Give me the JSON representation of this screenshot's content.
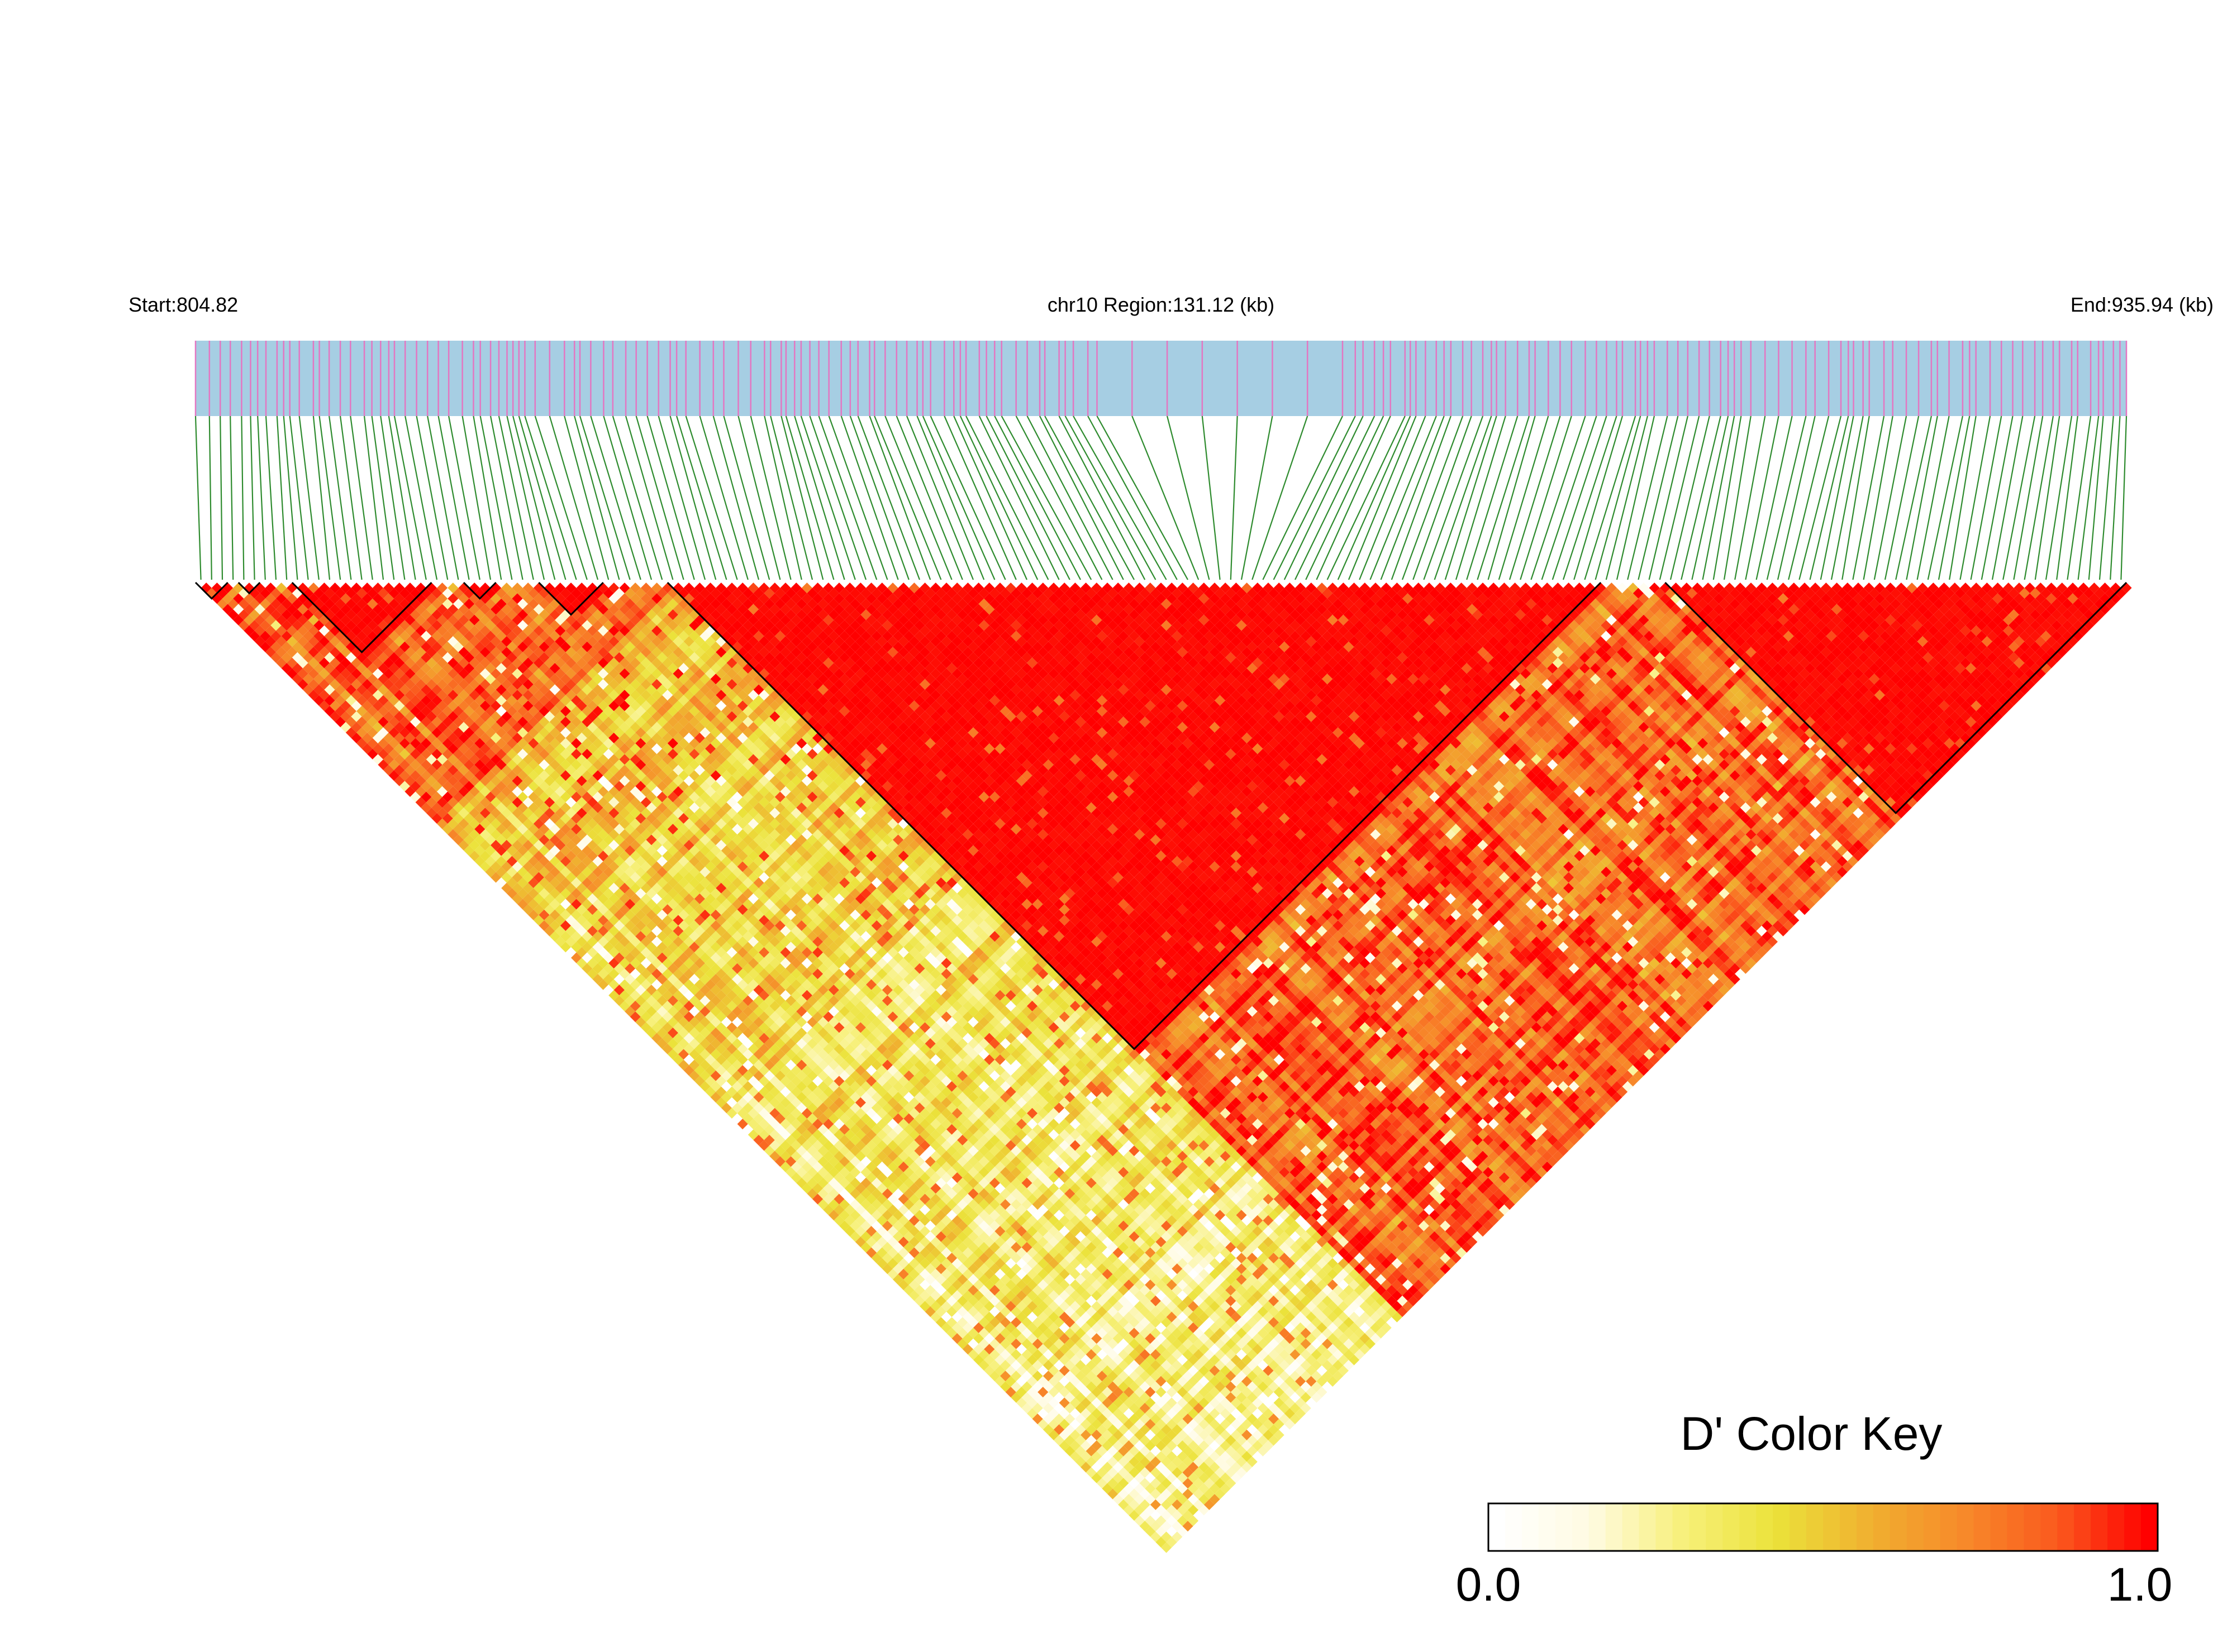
{
  "chart_data": {
    "type": "heatmap",
    "subtype": "linkage-disequilibrium-triangle",
    "header": {
      "start_label": "Start:804.82",
      "region_label": "chr10 Region:131.12 (kb)",
      "end_label": "End:935.94 (kb)"
    },
    "region": {
      "chromosome": "chr10",
      "start_kb": 804.82,
      "end_kb": 935.94,
      "length_kb": 131.12
    },
    "snp_count": 180,
    "gene_track_color": "#a6cee3",
    "snp_tick_color": "#e377c2",
    "connector_color": "#2e8b2e",
    "value_estimate": "Approximate D' values by zone, read from cell colours",
    "zones": [
      {
        "snps": [
          0,
          3
        ],
        "pair_scope": "within-block",
        "dprime_approx": 0.97
      },
      {
        "snps": [
          4,
          6
        ],
        "pair_scope": "within-block",
        "dprime_approx": 0.97
      },
      {
        "snps": [
          9,
          22
        ],
        "pair_scope": "within-block",
        "dprime_approx": 0.96
      },
      {
        "snps": [
          25,
          28
        ],
        "pair_scope": "within-block",
        "dprime_approx": 0.97
      },
      {
        "snps": [
          32,
          38
        ],
        "pair_scope": "within-block",
        "dprime_approx": 0.96
      },
      {
        "snps": [
          44,
          131
        ],
        "pair_scope": "within-block",
        "dprime_approx": 0.96
      },
      {
        "snps": [
          137,
          180
        ],
        "pair_scope": "within-block",
        "dprime_approx": 0.97
      },
      {
        "snps": [
          0,
          44
        ],
        "pair_scope": "left-region",
        "dprime_approx": 0.78
      },
      {
        "snps": [
          44,
          137
        ],
        "pair_scope": "left-to-middle",
        "dprime_approx": 0.55
      },
      {
        "snps": [
          44,
          180
        ],
        "pair_scope": "middle-to-right",
        "dprime_approx": 0.82
      }
    ],
    "haplotype_blocks": [
      {
        "snps": [
          0,
          3
        ]
      },
      {
        "snps": [
          4,
          6
        ]
      },
      {
        "snps": [
          9,
          22
        ]
      },
      {
        "snps": [
          25,
          28
        ]
      },
      {
        "snps": [
          32,
          38
        ]
      },
      {
        "snps": [
          44,
          131
        ]
      },
      {
        "snps": [
          137,
          180
        ]
      }
    ],
    "color_key": {
      "title": "D' Color Key",
      "min_label": "0.0",
      "max_label": "1.0",
      "min": 0.0,
      "max": 1.0,
      "colors": [
        "#ffffff",
        "#fffbe2",
        "#f7f07a",
        "#ebe23a",
        "#f0b030",
        "#f78a2a",
        "#fa5a1e",
        "#ff0000"
      ]
    }
  }
}
